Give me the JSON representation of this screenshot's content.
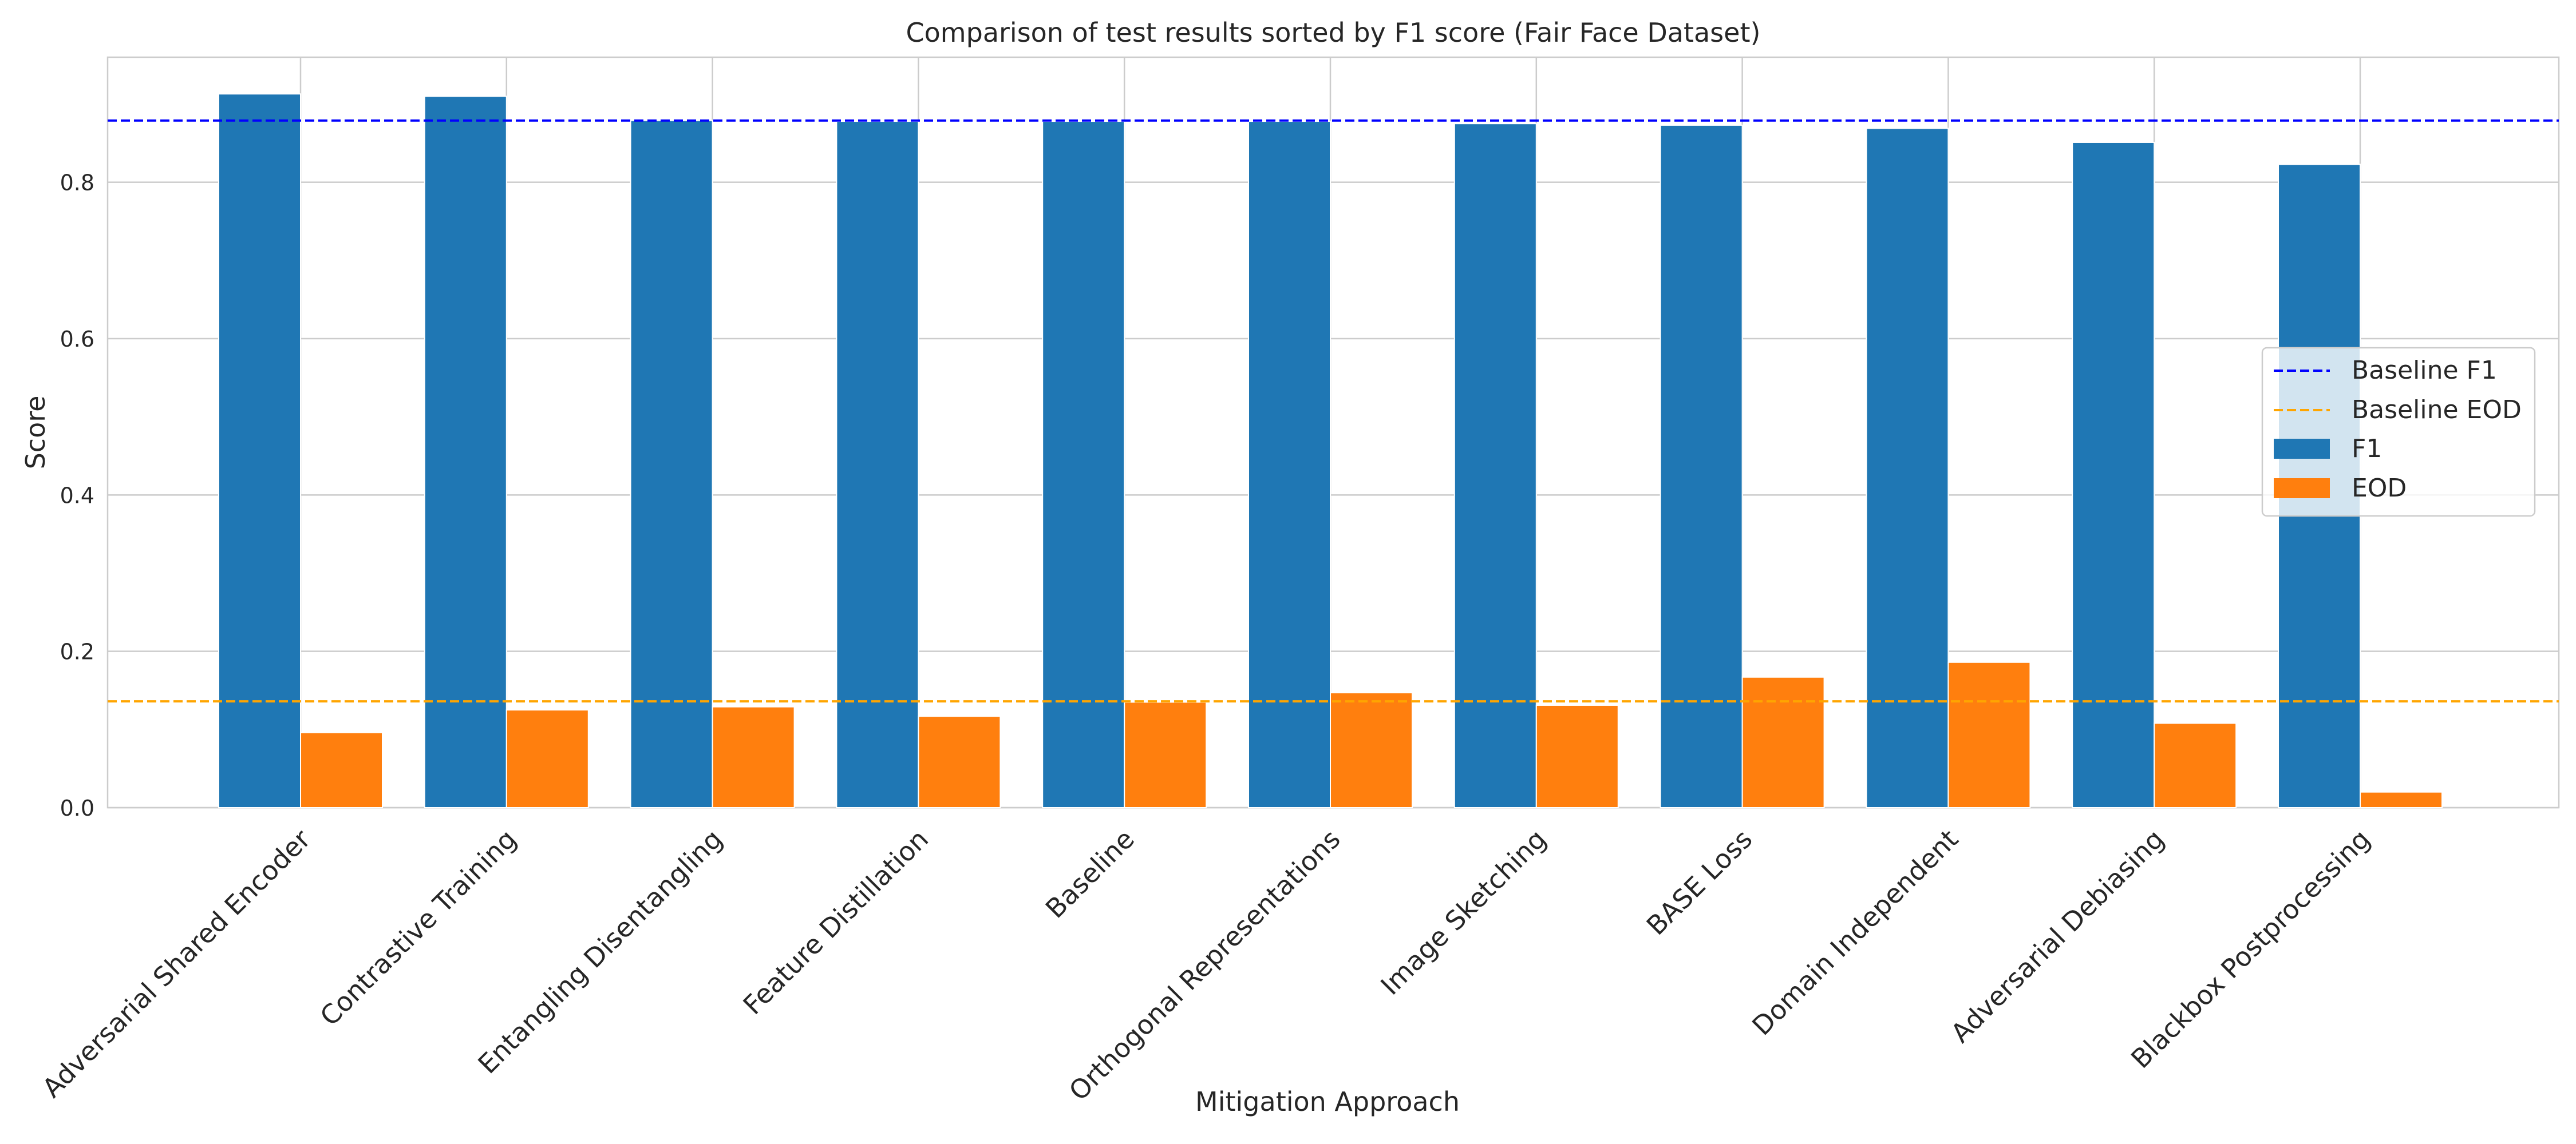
{
  "chart_data": {
    "type": "bar",
    "title": "Comparison of test results sorted by F1 score (Fair Face Dataset)",
    "xlabel": "Mitigation Approach",
    "ylabel": "Score",
    "ylim": [
      0,
      0.96
    ],
    "yticks": [
      "0.0",
      "0.2",
      "0.4",
      "0.6",
      "0.8"
    ],
    "ytick_values": [
      0,
      0.2,
      0.4,
      0.6,
      0.8
    ],
    "grid": true,
    "legend_position": "center-right",
    "categories": [
      "Adversarial Shared Encoder",
      "Contrastive Training",
      "Entangling Disentangling",
      "Feature Distillation",
      "Baseline",
      "Orthogonal Representations",
      "Image Sketching",
      "BASE Loss",
      "Domain Independent",
      "Adversarial Debiasing",
      "Blackbox Postprocessing"
    ],
    "series": [
      {
        "name": "F1",
        "color": "#1f77b4",
        "values": [
          0.913,
          0.91,
          0.879,
          0.878,
          0.878,
          0.878,
          0.875,
          0.873,
          0.869,
          0.851,
          0.823
        ]
      },
      {
        "name": "EOD",
        "color": "#ff7f0e",
        "values": [
          0.096,
          0.125,
          0.129,
          0.117,
          0.135,
          0.147,
          0.131,
          0.167,
          0.186,
          0.108,
          0.02
        ]
      }
    ],
    "reference_lines": [
      {
        "name": "Baseline F1",
        "value": 0.879,
        "color": "#0000ff",
        "style": "dashed"
      },
      {
        "name": "Baseline EOD",
        "value": 0.136,
        "color": "#ffa500",
        "style": "dashed"
      }
    ]
  }
}
